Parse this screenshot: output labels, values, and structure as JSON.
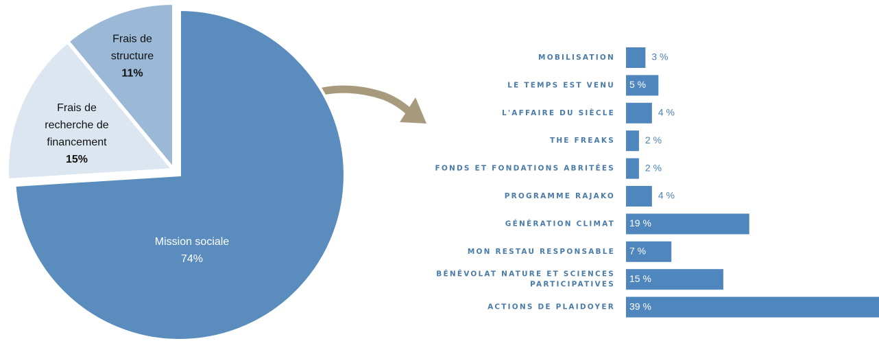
{
  "chart_data": [
    {
      "type": "pie",
      "categories": [
        "Mission sociale",
        "Frais de recherche de financement",
        "Frais de structure"
      ],
      "values": [
        74,
        15,
        11
      ],
      "value_labels": [
        "74%",
        "15%",
        "11%"
      ],
      "colors": [
        "#5a8dbd",
        "#dce6f0",
        "#9bb8d6"
      ]
    },
    {
      "type": "bar",
      "orientation": "horizontal",
      "categories": [
        "MOBILISATION",
        "LE TEMPS EST VENU",
        "L'AFFAIRE DU SIÈCLE",
        "THE FREAKS",
        "FONDS ET FONDATIONS ABRITÉES",
        "PROGRAMME RAJAKO",
        "GÉNÉRATION CLIMAT",
        "MON RESTAU RESPONSABLE",
        "BÉNÉVOLAT NATURE ET SCIENCES PARTICIPATIVES",
        "ACTIONS DE PLAIDOYER"
      ],
      "values": [
        3,
        5,
        4,
        2,
        2,
        4,
        19,
        7,
        15,
        39
      ],
      "value_labels": [
        "3 %",
        "5 %",
        "4 %",
        "2 %",
        "2 %",
        "4 %",
        "19 %",
        "7 %",
        "15 %",
        "39 %"
      ],
      "color": "#4f86bd"
    }
  ]
}
